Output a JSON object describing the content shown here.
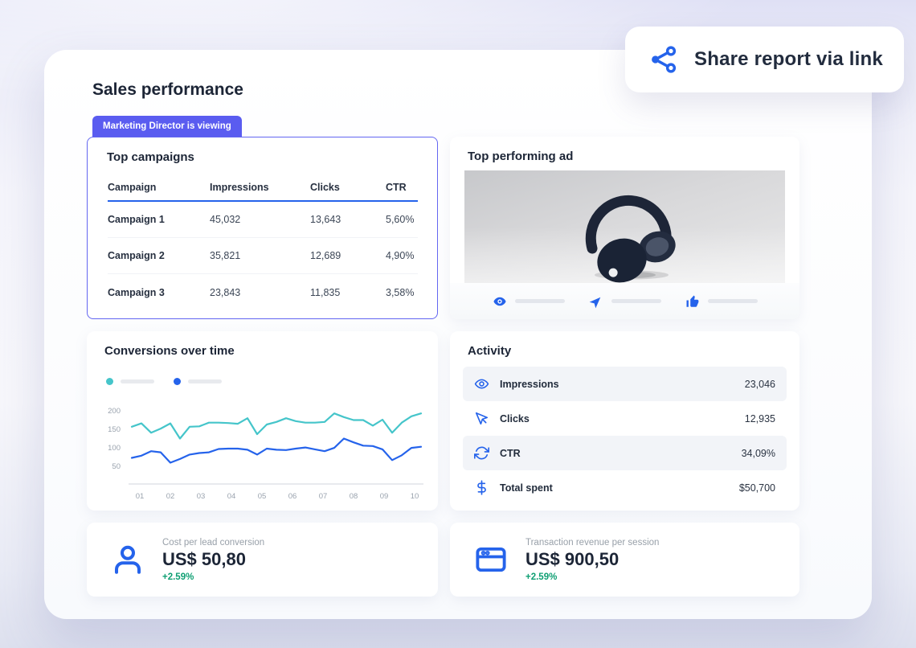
{
  "page": {
    "title": "Sales performance",
    "viewer_badge": "Marketing Director is viewing"
  },
  "share": {
    "label": "Share report via link",
    "icon": "share-icon"
  },
  "colors": {
    "accent_blue": "#2563eb",
    "teal": "#45c5ca",
    "badge_purple": "#5a5cf0",
    "campaigns_border_purple": "#6366f1",
    "positive_green": "#0f9f73",
    "heading_navy": "#1c2536"
  },
  "top_campaigns": {
    "title": "Top campaigns",
    "columns": [
      "Campaign",
      "Impressions",
      "Clicks",
      "CTR"
    ],
    "rows": [
      [
        "Campaign 1",
        "45,032",
        "13,643",
        "5,60%"
      ],
      [
        "Campaign 2",
        "35,821",
        "12,689",
        "4,90%"
      ],
      [
        "Campaign 3",
        "23,843",
        "11,835",
        "3,58%"
      ]
    ]
  },
  "top_ad": {
    "title": "Top performing ad",
    "image": "headphones-product-photo",
    "metrics": [
      {
        "icon": "eye-icon"
      },
      {
        "icon": "send-icon"
      },
      {
        "icon": "thumbs-up-icon"
      }
    ]
  },
  "chart_data": {
    "type": "line",
    "title": "Conversions over time",
    "xlabel": "",
    "ylabel": "",
    "x_ticks": [
      "01",
      "02",
      "03",
      "04",
      "05",
      "06",
      "07",
      "08",
      "09",
      "10"
    ],
    "y_ticks": [
      50,
      100,
      150,
      200
    ],
    "ylim": [
      20,
      215
    ],
    "grid": false,
    "legend_position": "top-left",
    "legend_labels_are_placeholder_bars": true,
    "series": [
      {
        "name": "conversions-teal",
        "color": "#45c5ca",
        "values": [
          157,
          166,
          141,
          152,
          166,
          125,
          157,
          158,
          168,
          168,
          167,
          165,
          180,
          137,
          163,
          170,
          180,
          172,
          168,
          168,
          170,
          193,
          183,
          175,
          175,
          160,
          176,
          141,
          168,
          185,
          193
        ]
      },
      {
        "name": "conversions-blue",
        "color": "#2563eb",
        "values": [
          73,
          79,
          91,
          88,
          60,
          70,
          82,
          86,
          88,
          97,
          98,
          98,
          95,
          82,
          98,
          95,
          94,
          98,
          101,
          96,
          91,
          100,
          125,
          115,
          106,
          105,
          96,
          67,
          80,
          100,
          103
        ]
      }
    ]
  },
  "activity": {
    "title": "Activity",
    "rows": [
      {
        "icon": "eye-outline-icon",
        "label": "Impressions",
        "value": "23,046"
      },
      {
        "icon": "cursor-icon",
        "label": "Clicks",
        "value": "12,935"
      },
      {
        "icon": "refresh-icon",
        "label": "CTR",
        "value": "34,09%"
      },
      {
        "icon": "dollar-icon",
        "label": "Total spent",
        "value": "$50,700"
      }
    ]
  },
  "kpis": [
    {
      "icon": "person-icon",
      "label": "Cost per lead conversion",
      "value": "US$ 50,80",
      "change": "+2.59%"
    },
    {
      "icon": "credit-card-icon",
      "label": "Transaction revenue per session",
      "value": "US$ 900,50",
      "change": "+2.59%"
    }
  ]
}
